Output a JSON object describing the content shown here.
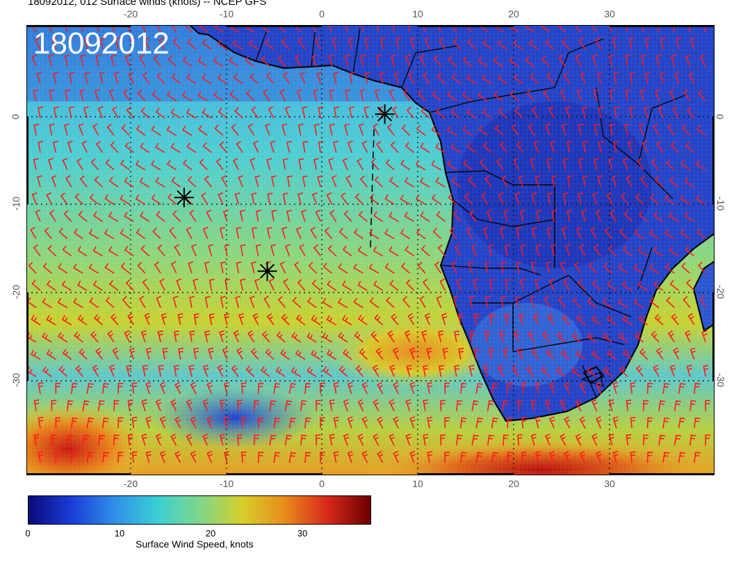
{
  "title": "18092012, 012 Surface winds (knots) -- NCEP GFS",
  "stamp": "18092012",
  "lon_ticks": [
    "-20",
    "-10",
    "0",
    "10",
    "20",
    "30"
  ],
  "lat_ticks": [
    "0",
    "-10",
    "-20",
    "-30"
  ],
  "colorbar": {
    "label": "Surface Wind Speed, knots",
    "ticks": [
      "0",
      "10",
      "20",
      "30"
    ],
    "colors": [
      "#0a0a7a",
      "#1a3cd6",
      "#2f8ee8",
      "#39cfd6",
      "#7fd68a",
      "#d6d02a",
      "#e88a1a",
      "#d6281a",
      "#6a0000"
    ]
  },
  "colors": {
    "barb": "#ff1a1a",
    "coast": "#000000",
    "ocean_low": "#1f3fcf",
    "ocean_mid": "#33b8d8",
    "ocean_high": "#d8d02a",
    "storm": "#d62a1a"
  },
  "markers": [
    {
      "name": "marker-gulf-guinea",
      "lon": 6.5,
      "lat": 0.2
    },
    {
      "name": "marker-atlantic-north",
      "lon": -14.5,
      "lat": -8.5
    },
    {
      "name": "marker-atlantic-south",
      "lon": -5.8,
      "lat": -16.2
    }
  ]
}
